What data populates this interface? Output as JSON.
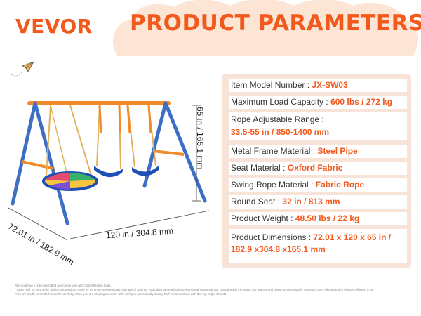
{
  "brand": {
    "logo_text": "VEVOR"
  },
  "header": {
    "title": "PRODUCT PARAMETERS"
  },
  "dimensions": {
    "height": "65 in / 165.1 mm",
    "width": "120 in / 304.8 mm",
    "depth": "72.01 in / 182.9 mm"
  },
  "specs": [
    {
      "label": "Item Model Number :",
      "value": "JX-SW03"
    },
    {
      "label": "Maximum Load Capacity :",
      "value": "600 lbs / 272 kg"
    },
    {
      "label": "Rope Adjustable Range :",
      "value": "33.5-55 in / 850-1400 mm"
    },
    {
      "label": "Metal Frame Material :",
      "value": "Steel Pipe"
    },
    {
      "label": "Seat Material :",
      "value": "Oxford Fabric"
    },
    {
      "label": "Swing Rope Material :",
      "value": "Fabric Rope"
    },
    {
      "label": "Round Seat :",
      "value": "32 in / 813 mm"
    },
    {
      "label": "Product Weight :",
      "value": "48.50 lbs / 22 kg"
    },
    {
      "label": "Product Dimensions :",
      "value": "72.01 x 120 x 65 in / 182.9 x304.8 x165.1 mm"
    }
  ],
  "footer": {
    "line1": "We continue to be committed to provide you with cost-effective tools.",
    "line2": "\"Save Half\" or any other similar expressions used by us only represents an estimate of savings you might benefit from buying certain tools with us compared to the major top brands and does not necessarily mean to cover all categories of tools offered by us.",
    "line3": "You are kindly reminded to verify carefully when you are placing an order with us if you are actually saving half in comparison with the top major brands."
  },
  "colors": {
    "accent": "#f25a1d",
    "panel_bg": "#f7e3d8",
    "frame_blue": "#3d6fc4",
    "top_bar_orange": "#f08a2a",
    "seat_blue": "#1f4fb5"
  },
  "icons": {
    "decoration": "paper-plane-icon"
  }
}
